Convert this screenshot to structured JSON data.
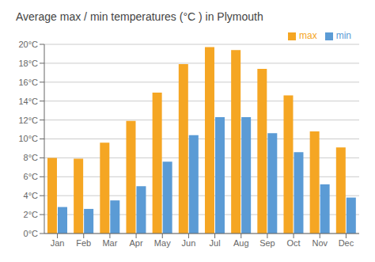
{
  "chart_data": {
    "type": "bar",
    "title": "Average max / min temperatures (°C ) in Plymouth",
    "categories": [
      "Jan",
      "Feb",
      "Mar",
      "Apr",
      "May",
      "Jun",
      "Jul",
      "Aug",
      "Sep",
      "Oct",
      "Nov",
      "Dec"
    ],
    "series": [
      {
        "name": "max",
        "color": "#f5a623",
        "values": [
          8.0,
          7.9,
          9.6,
          11.9,
          14.9,
          17.9,
          19.7,
          19.4,
          17.4,
          14.6,
          10.8,
          9.1
        ]
      },
      {
        "name": "min",
        "color": "#5b9bd5",
        "values": [
          2.8,
          2.6,
          3.5,
          5.0,
          7.6,
          10.4,
          12.3,
          12.3,
          10.6,
          8.6,
          5.2,
          3.8
        ]
      }
    ],
    "ylim": [
      0,
      20
    ],
    "yticks": [
      {
        "value": 0,
        "label": "0°C"
      },
      {
        "value": 2,
        "label": "2°C"
      },
      {
        "value": 4,
        "label": "4°C"
      },
      {
        "value": 6,
        "label": "6°C"
      },
      {
        "value": 8,
        "label": "8°C"
      },
      {
        "value": 10,
        "label": "10°C"
      },
      {
        "value": 12,
        "label": "12°C"
      },
      {
        "value": 14,
        "label": "14°C"
      },
      {
        "value": 16,
        "label": "16°C"
      },
      {
        "value": 18,
        "label": "18°C"
      },
      {
        "value": 20,
        "label": "20°C"
      }
    ],
    "grid": true,
    "legend": "upper right"
  }
}
